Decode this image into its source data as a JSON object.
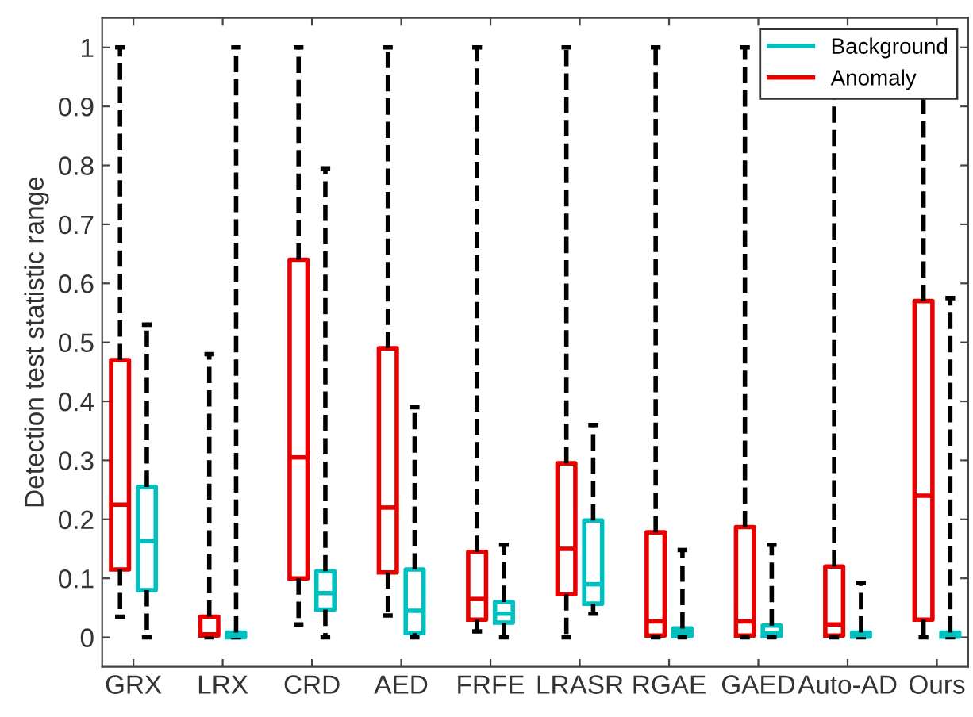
{
  "chart_data": {
    "type": "box",
    "ylabel": "Detection test statistic range",
    "categories": [
      "GRX",
      "LRX",
      "CRD",
      "AED",
      "FRFE",
      "LRASR",
      "RGAE",
      "GAED",
      "Auto-AD",
      "Ours"
    ],
    "ylim": [
      -0.05,
      1.05
    ],
    "yticks": [
      0,
      0.1,
      0.2,
      0.3,
      0.4,
      0.5,
      0.6,
      0.7,
      0.8,
      0.9,
      1
    ],
    "grid": false,
    "legend": "top right",
    "line_style": "dashed",
    "series": [
      {
        "name": "Background",
        "color": "#00bfbf",
        "boxes": [
          {
            "low": 0,
            "q1": 0.08,
            "median": 0.163,
            "q3": 0.255,
            "high": 0.53
          },
          {
            "low": 0,
            "q1": 0,
            "median": 0.002,
            "q3": 0.008,
            "high": 1
          },
          {
            "low": 0,
            "q1": 0.047,
            "median": 0.075,
            "q3": 0.112,
            "high": 0.795
          },
          {
            "low": 0,
            "q1": 0.007,
            "median": 0.045,
            "q3": 0.115,
            "high": 0.39
          },
          {
            "low": 0,
            "q1": 0.025,
            "median": 0.04,
            "q3": 0.06,
            "high": 0.157
          },
          {
            "low": 0.04,
            "q1": 0.057,
            "median": 0.09,
            "q3": 0.198,
            "high": 0.36
          },
          {
            "low": 0,
            "q1": 0.002,
            "median": 0.007,
            "q3": 0.015,
            "high": 0.148
          },
          {
            "low": 0,
            "q1": 0.002,
            "median": 0.007,
            "q3": 0.02,
            "high": 0.157
          },
          {
            "low": 0,
            "q1": 0.001,
            "median": 0.004,
            "q3": 0.008,
            "high": 0.092
          },
          {
            "low": 0,
            "q1": 0.001,
            "median": 0.004,
            "q3": 0.008,
            "high": 0.575
          }
        ]
      },
      {
        "name": "Anomaly",
        "color": "#e60000",
        "boxes": [
          {
            "low": 0.035,
            "q1": 0.115,
            "median": 0.225,
            "q3": 0.47,
            "high": 1
          },
          {
            "low": 0,
            "q1": 0.003,
            "median": 0.005,
            "q3": 0.035,
            "high": 0.48
          },
          {
            "low": 0.022,
            "q1": 0.1,
            "median": 0.305,
            "q3": 0.64,
            "high": 1
          },
          {
            "low": 0.037,
            "q1": 0.11,
            "median": 0.22,
            "q3": 0.49,
            "high": 1
          },
          {
            "low": 0.01,
            "q1": 0.03,
            "median": 0.065,
            "q3": 0.145,
            "high": 1
          },
          {
            "low": 0,
            "q1": 0.073,
            "median": 0.15,
            "q3": 0.295,
            "high": 1
          },
          {
            "low": 0,
            "q1": 0.003,
            "median": 0.027,
            "q3": 0.178,
            "high": 1
          },
          {
            "low": 0,
            "q1": 0.003,
            "median": 0.027,
            "q3": 0.187,
            "high": 1
          },
          {
            "low": 0,
            "q1": 0.003,
            "median": 0.022,
            "q3": 0.12,
            "high": 1
          },
          {
            "low": 0,
            "q1": 0.03,
            "median": 0.24,
            "q3": 0.57,
            "high": 1
          }
        ]
      }
    ]
  }
}
